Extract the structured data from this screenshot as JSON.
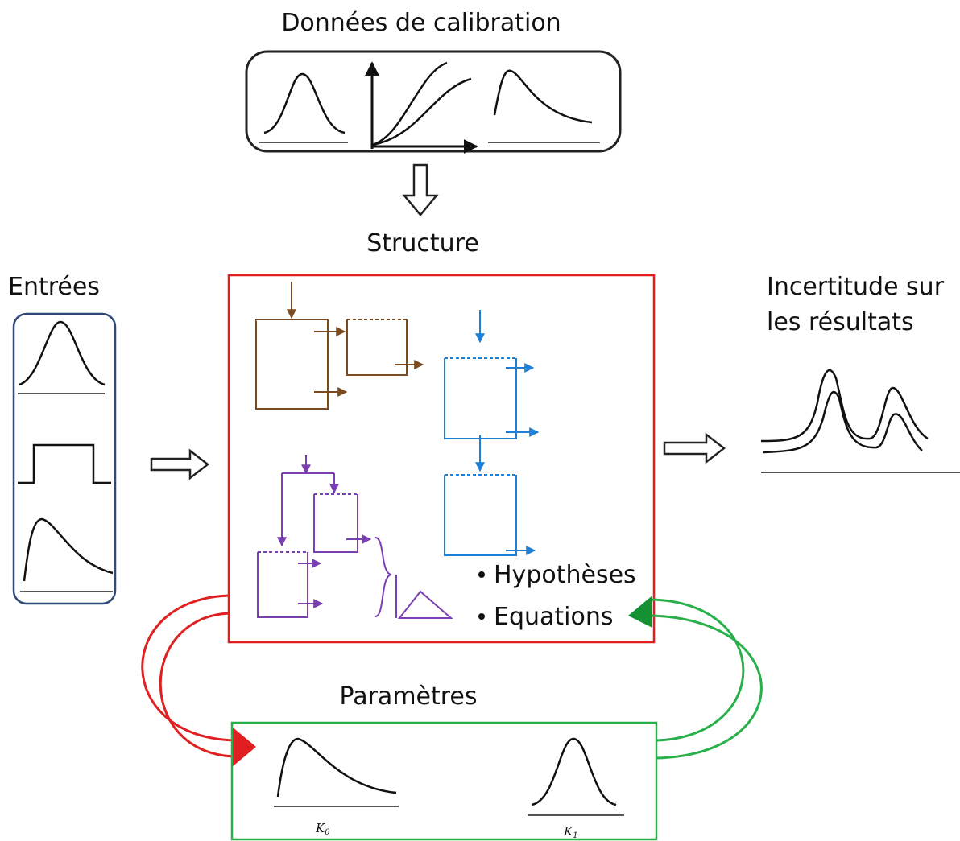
{
  "calibration": {
    "title": "Données de calibration"
  },
  "structure": {
    "title": "Structure",
    "bullets": [
      "Hypothèses",
      "Equations"
    ]
  },
  "inputs": {
    "title": "Entrées"
  },
  "output": {
    "title_lines": [
      "Incertitude sur",
      "les résultats"
    ]
  },
  "parameters": {
    "title": "Paramètres",
    "labels": [
      {
        "symbol": "K",
        "subscript": "0"
      },
      {
        "symbol": "K",
        "subscript": "1"
      }
    ]
  }
}
